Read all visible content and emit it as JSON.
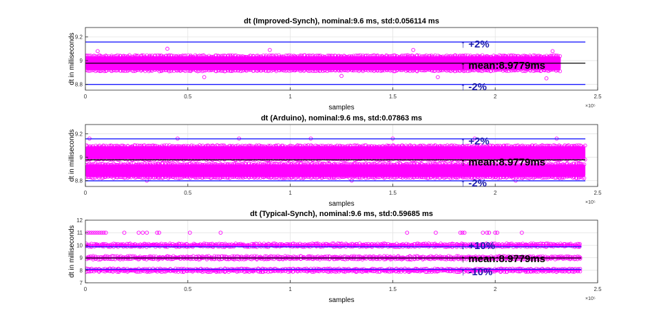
{
  "chart_data": [
    {
      "type": "scatter",
      "title": "dt (Improved-Synch), nominal:9.6 ms, std:0.056114 ms",
      "xlabel": "samples",
      "ylabel": "dt in milliseconds",
      "x_exponent": "×10⁵",
      "xlim": [
        0,
        2.5
      ],
      "ylim": [
        8.75,
        9.28
      ],
      "x_ticks": [
        0,
        0.5,
        1,
        1.5,
        2,
        2.5
      ],
      "x_tick_labels": [
        "0",
        "0.5",
        "1",
        "1.5",
        "2",
        "2.5"
      ],
      "y_ticks": [
        8.8,
        9,
        9.2
      ],
      "y_tick_labels": [
        "8.8",
        "9",
        "9.2"
      ],
      "grid": true,
      "marker_color": "#ff00ff",
      "data_x_max": 2.32,
      "bands": [
        {
          "y_center": 8.9779,
          "half_width": 0.06
        }
      ],
      "outliers": [
        [
          0.06,
          9.08
        ],
        [
          0.4,
          9.1
        ],
        [
          0.58,
          8.86
        ],
        [
          0.9,
          9.09
        ],
        [
          1.25,
          8.87
        ],
        [
          1.6,
          9.09
        ],
        [
          1.72,
          8.86
        ],
        [
          2.28,
          9.08
        ],
        [
          2.25,
          8.85
        ]
      ],
      "reference_lines": [
        {
          "name": "+2%",
          "y": 9.1574,
          "color": "#1a1aff",
          "x_end": 2.44
        },
        {
          "name": "mean",
          "y": 8.9779,
          "color": "#000000",
          "x_end": 2.44
        },
        {
          "name": "-2%",
          "y": 8.7983,
          "color": "#1a1aff",
          "x_end": 2.44
        }
      ],
      "annotations": [
        {
          "text": "↑ +2%",
          "x": 1.83,
          "y": 9.11,
          "color": "#1a1aaa"
        },
        {
          "text": "↑ mean:8.9779ms",
          "x": 1.83,
          "y": 8.93,
          "color": "#000000"
        },
        {
          "text": "↑ -2%",
          "x": 1.83,
          "y": 8.75,
          "color": "#1a1aaa"
        }
      ]
    },
    {
      "type": "scatter",
      "title": "dt (Arduino), nominal:9.6 ms, std:0.07863 ms",
      "xlabel": "samples",
      "ylabel": "dt in milliseconds",
      "x_exponent": "×10⁵",
      "xlim": [
        0,
        2.5
      ],
      "ylim": [
        8.75,
        9.28
      ],
      "x_ticks": [
        0,
        0.5,
        1,
        1.5,
        2,
        2.5
      ],
      "x_tick_labels": [
        "0",
        "0.5",
        "1",
        "1.5",
        "2",
        "2.5"
      ],
      "y_ticks": [
        8.8,
        9,
        9.2
      ],
      "y_tick_labels": [
        "8.8",
        "9",
        "9.2"
      ],
      "grid": true,
      "marker_color": "#ff00ff",
      "data_x_max": 2.44,
      "bands": [
        {
          "y_center": 9.04,
          "half_width": 0.055
        },
        {
          "y_center": 8.885,
          "half_width": 0.055
        }
      ],
      "outliers": [
        [
          0.02,
          9.16
        ],
        [
          0.45,
          9.16
        ],
        [
          0.75,
          9.16
        ],
        [
          1.1,
          9.16
        ],
        [
          1.5,
          9.16
        ],
        [
          1.9,
          9.16
        ],
        [
          2.3,
          9.16
        ],
        [
          0.3,
          8.8
        ],
        [
          1.3,
          8.8
        ],
        [
          2.1,
          8.8
        ]
      ],
      "reference_lines": [
        {
          "name": "+2%",
          "y": 9.1574,
          "color": "#1a1aff",
          "x_end": 2.44
        },
        {
          "name": "mean",
          "y": 8.9779,
          "color": "#000000",
          "x_end": 2.44
        },
        {
          "name": "-2%",
          "y": 8.7983,
          "color": "#1a1aff",
          "x_end": 2.44
        }
      ],
      "annotations": [
        {
          "text": "↑ +2%",
          "x": 1.83,
          "y": 9.11,
          "color": "#1a1aaa"
        },
        {
          "text": "↑ mean:8.9779ms",
          "x": 1.83,
          "y": 8.93,
          "color": "#000000"
        },
        {
          "text": "↑ -2%",
          "x": 1.83,
          "y": 8.75,
          "color": "#1a1aaa"
        }
      ]
    },
    {
      "type": "scatter",
      "title": "dt (Typical-Synch), nominal:9.6 ms, std:0.59685 ms",
      "xlabel": "samples",
      "ylabel": "dt in milliseconds",
      "x_exponent": "×10⁵",
      "xlim": [
        0,
        2.5
      ],
      "ylim": [
        7,
        12
      ],
      "x_ticks": [
        0,
        0.5,
        1,
        1.5,
        2,
        2.5
      ],
      "x_tick_labels": [
        "0",
        "0.5",
        "1",
        "1.5",
        "2",
        "2.5"
      ],
      "y_ticks": [
        7,
        8,
        9,
        10,
        11,
        12
      ],
      "y_tick_labels": [
        "7",
        "8",
        "9",
        "10",
        "11",
        "12"
      ],
      "grid": true,
      "marker_color": "#ff00ff",
      "data_x_max": 2.42,
      "bands": [
        {
          "y_center": 10,
          "half_width": 0.06
        },
        {
          "y_center": 9,
          "half_width": 0.06
        },
        {
          "y_center": 8,
          "half_width": 0.06
        }
      ],
      "outliers": [
        [
          0.01,
          11
        ],
        [
          0.02,
          11
        ],
        [
          0.03,
          11
        ],
        [
          0.04,
          11
        ],
        [
          0.05,
          11
        ],
        [
          0.06,
          11
        ],
        [
          0.07,
          11
        ],
        [
          0.08,
          11
        ],
        [
          0.09,
          11
        ],
        [
          0.1,
          11
        ],
        [
          0.19,
          11
        ],
        [
          0.26,
          11
        ],
        [
          0.28,
          11
        ],
        [
          0.3,
          11
        ],
        [
          0.35,
          11
        ],
        [
          0.36,
          11
        ],
        [
          0.51,
          11
        ],
        [
          0.66,
          11
        ],
        [
          1.57,
          11
        ],
        [
          1.71,
          11
        ],
        [
          1.83,
          11
        ],
        [
          1.84,
          11
        ],
        [
          1.85,
          11
        ],
        [
          1.94,
          11
        ],
        [
          1.96,
          11
        ],
        [
          1.97,
          11
        ],
        [
          2.0,
          11
        ],
        [
          2.01,
          11
        ],
        [
          2.13,
          11
        ]
      ],
      "reference_lines": [
        {
          "name": "+10%",
          "y": 9.8757,
          "color": "#1a1aff",
          "x_end": 2.42
        },
        {
          "name": "mean",
          "y": 8.9779,
          "color": "#000000",
          "x_end": 2.42
        },
        {
          "name": "-10%",
          "y": 8.0801,
          "color": "#1a1aff",
          "x_end": 2.42
        }
      ],
      "annotations": [
        {
          "text": "↓ +10%",
          "x": 1.83,
          "y": 9.7,
          "color": "#1a1aaa"
        },
        {
          "text": "↑ mean:8.9779ms",
          "x": 1.83,
          "y": 8.65,
          "color": "#000000"
        },
        {
          "text": "↑ -10%",
          "x": 1.83,
          "y": 7.6,
          "color": "#1a1aaa"
        }
      ]
    }
  ]
}
